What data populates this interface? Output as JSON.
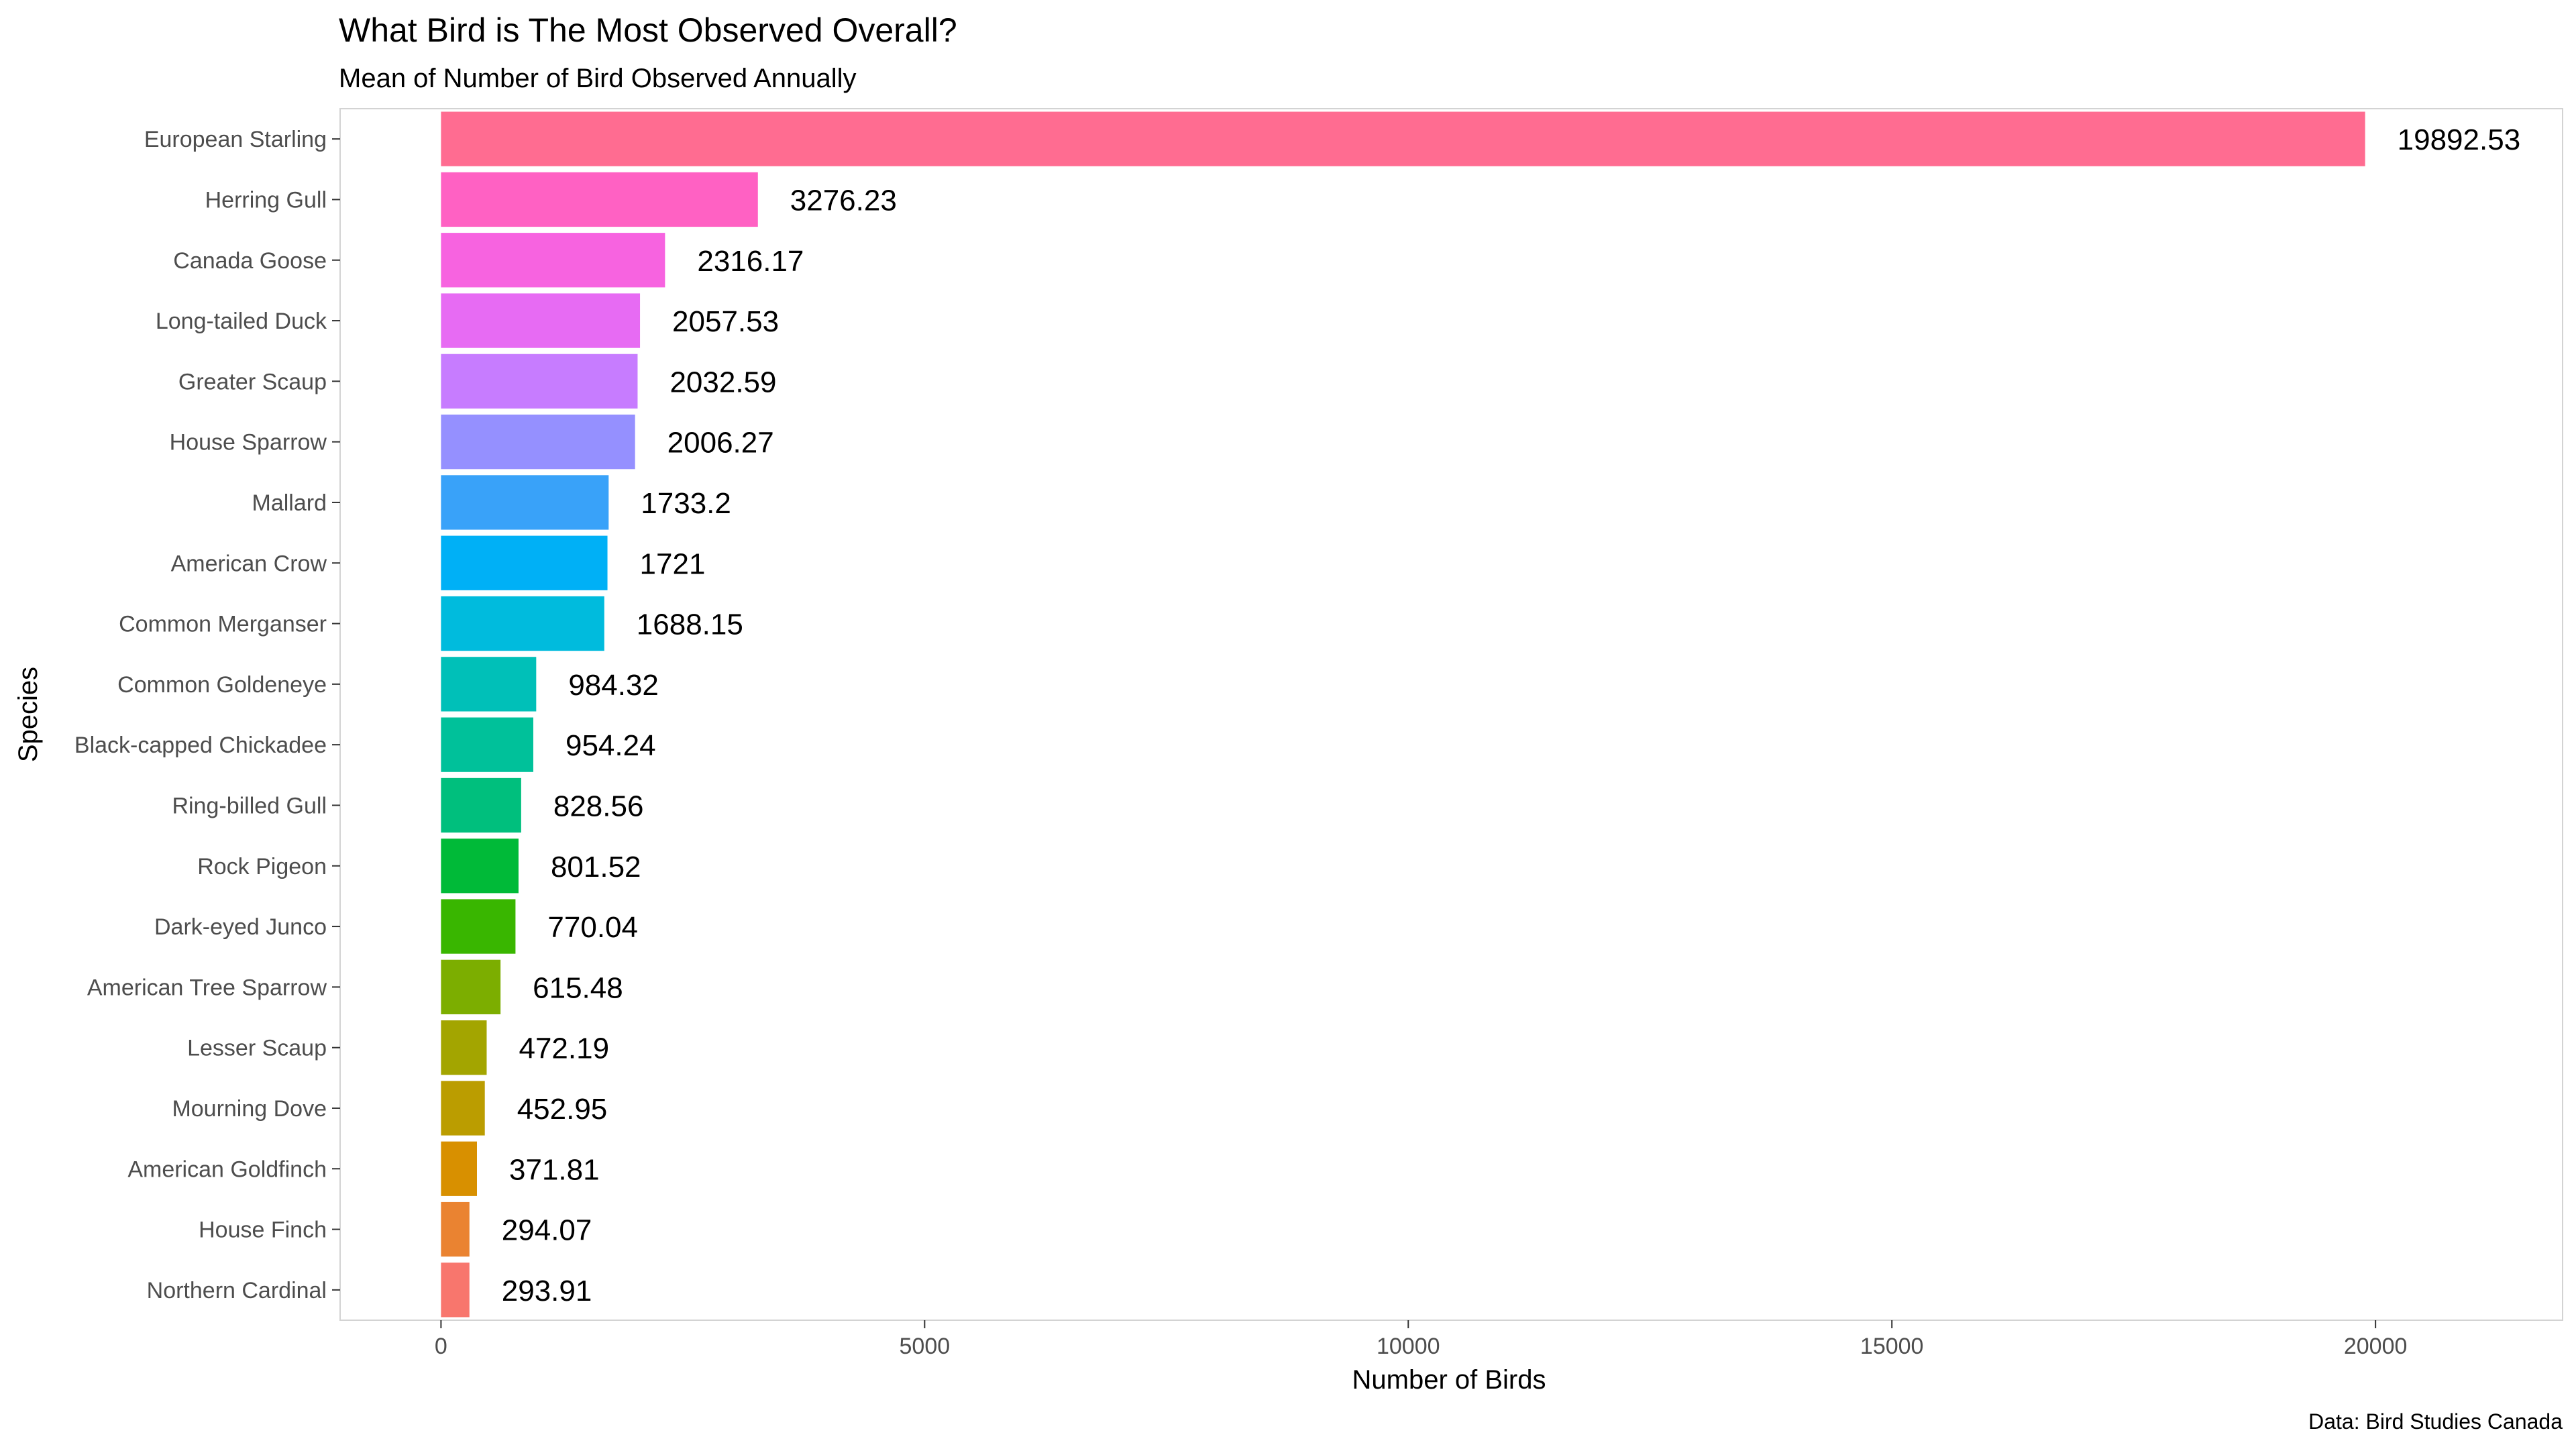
{
  "chart_data": {
    "type": "bar",
    "orientation": "horizontal",
    "title": "What Bird is The Most Observed Overall?",
    "subtitle": "Mean of Number of Bird Observed Annually",
    "xlabel": "Number of Birds",
    "ylabel": "Species",
    "caption": "Data: Bird Studies Canada",
    "xlim": [
      -1043,
      21934
    ],
    "xticks": [
      0,
      5000,
      10000,
      15000,
      20000
    ],
    "grid": false,
    "legend": "none",
    "categories": [
      "European Starling",
      "Herring Gull",
      "Canada Goose",
      "Long-tailed Duck",
      "Greater Scaup",
      "House Sparrow",
      "Mallard",
      "American Crow",
      "Common Merganser",
      "Common Goldeneye",
      "Black-capped Chickadee",
      "Ring-billed Gull",
      "Rock Pigeon",
      "Dark-eyed Junco",
      "American Tree Sparrow",
      "Lesser Scaup",
      "Mourning Dove",
      "American Goldfinch",
      "House Finch",
      "Northern Cardinal"
    ],
    "values": [
      19892.53,
      3276.23,
      2316.17,
      2057.53,
      2032.59,
      2006.27,
      1733.2,
      1721,
      1688.15,
      984.32,
      954.24,
      828.56,
      801.52,
      770.04,
      615.48,
      472.19,
      452.95,
      371.81,
      294.07,
      293.91
    ],
    "value_labels": [
      "19892.53",
      "3276.23",
      "2316.17",
      "2057.53",
      "2032.59",
      "2006.27",
      "1733.2",
      "1721",
      "1688.15",
      "984.32",
      "954.24",
      "828.56",
      "801.52",
      "770.04",
      "615.48",
      "472.19",
      "452.95",
      "371.81",
      "294.07",
      "293.91"
    ],
    "tick_labels": [
      "0",
      "5000",
      "10000",
      "15000",
      "20000"
    ],
    "colors": [
      "#FF6C91",
      "#FF61C3",
      "#F763E0",
      "#E76BF3",
      "#C77CFF",
      "#9590FF",
      "#39A2F9",
      "#00B0F6",
      "#00BBDD",
      "#00C0B8",
      "#00C19A",
      "#00BF7D",
      "#00BA38",
      "#39B600",
      "#7CAE00",
      "#A3A500",
      "#BB9D00",
      "#D89000",
      "#EA8331",
      "#F8766D"
    ]
  }
}
